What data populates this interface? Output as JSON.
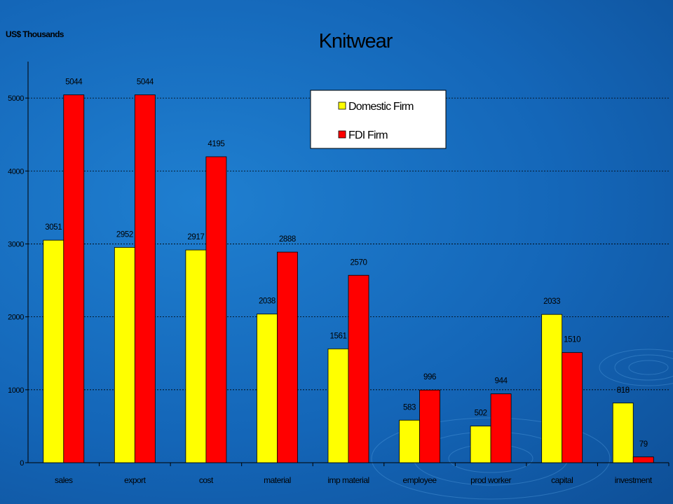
{
  "chart_data": {
    "type": "bar",
    "title": "Knitwear",
    "ylabel": "US$ Thousands",
    "xlabel": "",
    "categories": [
      "sales",
      "export",
      "cost",
      "material",
      "imp material",
      "employee",
      "prod worker",
      "capital",
      "investment"
    ],
    "series": [
      {
        "name": "Domestic Firm",
        "color": "#ffff00",
        "values": [
          3051,
          2952,
          2917,
          2038,
          1561,
          583,
          502,
          2033,
          818
        ]
      },
      {
        "name": "FDI Firm",
        "color": "#ff0000",
        "values": [
          5044,
          5044,
          4195,
          2888,
          2570,
          996,
          944,
          1510,
          79
        ]
      }
    ],
    "ylim": [
      0,
      5500
    ],
    "yticks": [
      0,
      1000,
      2000,
      3000,
      4000,
      5000
    ],
    "grid": true,
    "legend_position": "top-center"
  }
}
